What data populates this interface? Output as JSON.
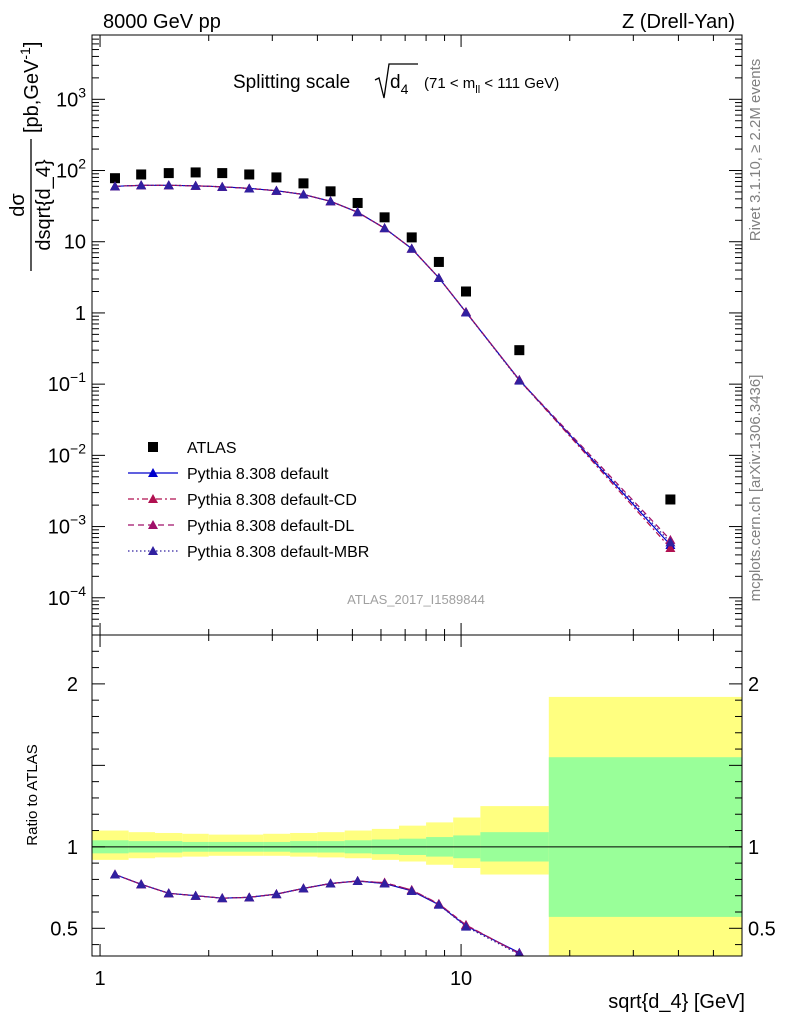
{
  "header": {
    "left": "8000 GeV pp",
    "right": "Z (Drell-Yan)"
  },
  "side_labels": {
    "rivet": "Rivet 3.1.10, ≥ 2.2M events",
    "mcplots": "mcplots.cern.ch [arXiv:1306.3436]"
  },
  "watermark": "ATLAS_2017_I1589844",
  "chart_data": [
    {
      "type": "scatter",
      "panel": "main",
      "title_parts": {
        "main": "Splitting scale",
        "var": "d",
        "var_sub": "4",
        "cut_pre": "(71 < m",
        "cut_sub": "ll",
        "cut_post": " < 111 GeV)"
      },
      "ylabel_parts": {
        "num": "dσ",
        "den": "dsqrt{d_4}",
        "unit_pre": "[pb,GeV",
        "unit_sup": "-1",
        "unit_post": "]"
      },
      "xlabel": "sqrt{d_4} [GeV]",
      "xscale": "log",
      "yscale": "log",
      "xlim": [
        0.95,
        60
      ],
      "ylim": [
        3e-05,
        8000
      ],
      "y_tick_labels": [
        {
          "value": 0.0001,
          "base": "10",
          "exp": "−4"
        },
        {
          "value": 0.001,
          "base": "10",
          "exp": "−3"
        },
        {
          "value": 0.01,
          "base": "10",
          "exp": "−2"
        },
        {
          "value": 0.1,
          "base": "10",
          "exp": "−1"
        },
        {
          "value": 1,
          "base": "1",
          "exp": ""
        },
        {
          "value": 10,
          "base": "10",
          "exp": ""
        },
        {
          "value": 100,
          "base": "10",
          "exp": "2"
        },
        {
          "value": 1000,
          "base": "10",
          "exp": "3"
        }
      ],
      "legend_position": "bottom-left",
      "x": [
        1.1,
        1.3,
        1.55,
        1.84,
        2.18,
        2.59,
        3.08,
        3.66,
        4.35,
        5.17,
        6.14,
        7.3,
        8.68,
        10.32,
        14.5,
        38.0
      ],
      "series": [
        {
          "name": "ATLAS",
          "color": "#000000",
          "marker": "square",
          "line": "none",
          "values": [
            78,
            88,
            92,
            94,
            92,
            88,
            80,
            66,
            51,
            35,
            22,
            11.5,
            5.2,
            2.0,
            0.3,
            0.0024
          ]
        },
        {
          "name": "Pythia 8.308 default",
          "color": "#0000cc",
          "marker": "triangle",
          "line": "solid",
          "values": [
            60,
            62,
            62,
            61,
            59,
            56,
            52,
            46,
            37,
            26,
            15.5,
            8.0,
            3.1,
            1.02,
            0.115,
            0.00055
          ]
        },
        {
          "name": "Pythia 8.308 default-CD",
          "color": "#b01050",
          "marker": "triangle",
          "line": "dashdot",
          "values": [
            60,
            62,
            62,
            61,
            59,
            56,
            52,
            46,
            37,
            26,
            15.5,
            8.0,
            3.1,
            1.03,
            0.114,
            0.0005
          ]
        },
        {
          "name": "Pythia 8.308 default-DL",
          "color": "#a0106a",
          "marker": "triangle",
          "line": "dashed",
          "values": [
            60,
            62,
            62,
            61,
            59,
            56,
            52,
            46,
            37,
            26,
            15.5,
            8.0,
            3.1,
            1.03,
            0.114,
            0.00065
          ]
        },
        {
          "name": "Pythia 8.308 default-MBR",
          "color": "#3020a0",
          "marker": "triangle",
          "line": "dotted",
          "values": [
            60,
            62,
            62,
            61,
            59,
            56,
            52,
            46,
            37,
            26,
            15.5,
            8.0,
            3.1,
            1.02,
            0.112,
            0.0006
          ]
        }
      ]
    },
    {
      "type": "line",
      "panel": "ratio",
      "ylabel": "Ratio to ATLAS",
      "xlabel": "sqrt{d_4} [GeV]",
      "xscale": "log",
      "xlim": [
        0.95,
        60
      ],
      "ylim": [
        0.33,
        2.3
      ],
      "x_tick_labels": [
        {
          "value": 1,
          "label": "1"
        },
        {
          "value": 10,
          "label": "10"
        }
      ],
      "y_tick_labels": [
        {
          "value": 0.5,
          "label": "0.5"
        },
        {
          "value": 1,
          "label": "1"
        },
        {
          "value": 2,
          "label": "2"
        }
      ],
      "reference_line": 1,
      "bands": {
        "bin_edges": [
          0.95,
          1.2,
          1.42,
          1.69,
          2.0,
          2.38,
          2.83,
          3.36,
          4.0,
          4.76,
          5.66,
          6.73,
          8.0,
          9.51,
          11.31,
          17.5,
          60
        ],
        "inner_color": "#99ff99",
        "outer_color": "#ffff80",
        "inner": [
          [
            0.96,
            1.04
          ],
          [
            0.965,
            1.035
          ],
          [
            0.965,
            1.035
          ],
          [
            0.97,
            1.03
          ],
          [
            0.97,
            1.03
          ],
          [
            0.97,
            1.03
          ],
          [
            0.97,
            1.03
          ],
          [
            0.965,
            1.035
          ],
          [
            0.965,
            1.035
          ],
          [
            0.96,
            1.04
          ],
          [
            0.955,
            1.045
          ],
          [
            0.95,
            1.05
          ],
          [
            0.94,
            1.06
          ],
          [
            0.93,
            1.07
          ],
          [
            0.91,
            1.09
          ],
          [
            0.57,
            1.55
          ]
        ],
        "outer": [
          [
            0.92,
            1.1
          ],
          [
            0.93,
            1.09
          ],
          [
            0.935,
            1.085
          ],
          [
            0.94,
            1.08
          ],
          [
            0.945,
            1.075
          ],
          [
            0.945,
            1.075
          ],
          [
            0.945,
            1.08
          ],
          [
            0.94,
            1.085
          ],
          [
            0.935,
            1.09
          ],
          [
            0.93,
            1.1
          ],
          [
            0.92,
            1.11
          ],
          [
            0.91,
            1.13
          ],
          [
            0.89,
            1.15
          ],
          [
            0.87,
            1.18
          ],
          [
            0.83,
            1.25
          ],
          [
            0.2,
            1.92
          ]
        ]
      },
      "x": [
        1.1,
        1.3,
        1.55,
        1.84,
        2.18,
        2.59,
        3.08,
        3.66,
        4.35,
        5.17,
        6.14,
        7.3,
        8.68,
        10.32,
        14.5
      ],
      "series": [
        {
          "name": "Pythia 8.308 default",
          "color": "#0000cc",
          "line": "solid",
          "values": [
            0.83,
            0.77,
            0.715,
            0.7,
            0.685,
            0.69,
            0.71,
            0.745,
            0.775,
            0.79,
            0.775,
            0.73,
            0.645,
            0.515,
            0.35
          ]
        },
        {
          "name": "Pythia 8.308 default-CD",
          "color": "#b01050",
          "line": "dashdot",
          "values": [
            0.83,
            0.77,
            0.715,
            0.7,
            0.685,
            0.69,
            0.71,
            0.745,
            0.775,
            0.79,
            0.78,
            0.735,
            0.65,
            0.52,
            0.345
          ]
        },
        {
          "name": "Pythia 8.308 default-DL",
          "color": "#a0106a",
          "line": "dashed",
          "values": [
            0.83,
            0.77,
            0.715,
            0.7,
            0.685,
            0.69,
            0.71,
            0.745,
            0.775,
            0.79,
            0.78,
            0.735,
            0.65,
            0.52,
            0.345
          ]
        },
        {
          "name": "Pythia 8.308 default-MBR",
          "color": "#3020a0",
          "line": "dotted",
          "values": [
            0.83,
            0.77,
            0.715,
            0.7,
            0.685,
            0.69,
            0.71,
            0.745,
            0.775,
            0.79,
            0.775,
            0.73,
            0.645,
            0.51,
            0.34
          ]
        }
      ]
    }
  ]
}
